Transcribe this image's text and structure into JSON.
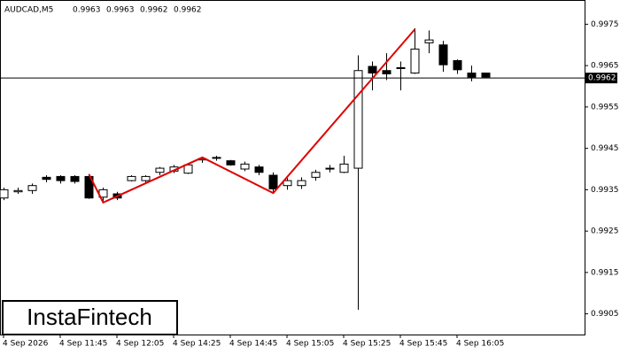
{
  "chart_data": {
    "type": "candlestick",
    "title": "AUDCAD,M5",
    "last_ohlc": [
      0.9963,
      0.9963,
      0.9962,
      0.9962
    ],
    "categories": [
      "4 Sep 2026",
      null,
      null,
      null,
      "4 Sep 11:45",
      null,
      null,
      null,
      "4 Sep 12:05",
      null,
      null,
      null,
      "4 Sep 14:25",
      null,
      null,
      null,
      "4 Sep 14:45",
      null,
      null,
      null,
      "4 Sep 15:05",
      null,
      null,
      null,
      "4 Sep 15:25",
      null,
      null,
      null,
      "4 Sep 15:45",
      null,
      null,
      null,
      "4 Sep 16:05",
      null,
      null
    ],
    "open": [
      0.9933,
      0.99345,
      0.99348,
      0.9938,
      0.99382,
      0.99382,
      0.99382,
      0.99332,
      0.9934,
      0.99372,
      0.99372,
      0.99392,
      0.99395,
      0.9939,
      0.99422,
      0.99428,
      0.9942,
      0.994,
      0.99405,
      0.99385,
      0.9936,
      0.9936,
      0.9938,
      0.994,
      0.99392,
      0.99402,
      0.99648,
      0.99638,
      0.99645,
      0.99632,
      0.99705,
      0.997,
      0.99662,
      0.99632,
      0.99632
    ],
    "high": [
      0.99355,
      0.99355,
      0.99365,
      0.99385,
      0.99385,
      0.99385,
      0.99388,
      0.99355,
      0.99345,
      0.99385,
      0.99385,
      0.99405,
      0.9941,
      0.99412,
      0.9943,
      0.99432,
      0.99422,
      0.99418,
      0.9941,
      0.99392,
      0.99378,
      0.9938,
      0.99398,
      0.9941,
      0.99432,
      0.99675,
      0.9966,
      0.9968,
      0.9966,
      0.9974,
      0.99735,
      0.9971,
      0.99665,
      0.9965,
      0.99632
    ],
    "low": [
      0.99325,
      0.9934,
      0.9934,
      0.99368,
      0.99365,
      0.99365,
      0.99328,
      0.9932,
      0.99325,
      0.9937,
      0.99368,
      0.99385,
      0.9939,
      0.99388,
      0.99415,
      0.9942,
      0.99408,
      0.99395,
      0.99385,
      0.99345,
      0.9935,
      0.99352,
      0.99372,
      0.99392,
      0.9939,
      0.9906,
      0.9959,
      0.99615,
      0.9959,
      0.9963,
      0.9968,
      0.99635,
      0.9963,
      0.99612,
      0.9962
    ],
    "close": [
      0.9935,
      0.99348,
      0.9936,
      0.99375,
      0.99372,
      0.9937,
      0.9933,
      0.9935,
      0.9933,
      0.99382,
      0.99382,
      0.99402,
      0.99405,
      0.9941,
      0.99425,
      0.99428,
      0.9941,
      0.99412,
      0.99392,
      0.99352,
      0.99372,
      0.99372,
      0.99392,
      0.99402,
      0.99412,
      0.99638,
      0.99632,
      0.9963,
      0.99645,
      0.9969,
      0.99712,
      0.99652,
      0.9964,
      0.99622,
      0.99622
    ],
    "pattern_line": {
      "color": "#e00000",
      "x": [
        6,
        7,
        14,
        19,
        29
      ],
      "values": [
        0.99387,
        0.99319,
        0.99428,
        0.99342,
        0.99738
      ]
    },
    "price_line": 0.9962,
    "ylim": [
      0.99,
      0.998
    ],
    "yticks": [
      0.9905,
      0.9915,
      0.9925,
      0.9935,
      0.9945,
      0.9955,
      0.9965,
      0.9975
    ],
    "logo": "InstaFintech"
  }
}
